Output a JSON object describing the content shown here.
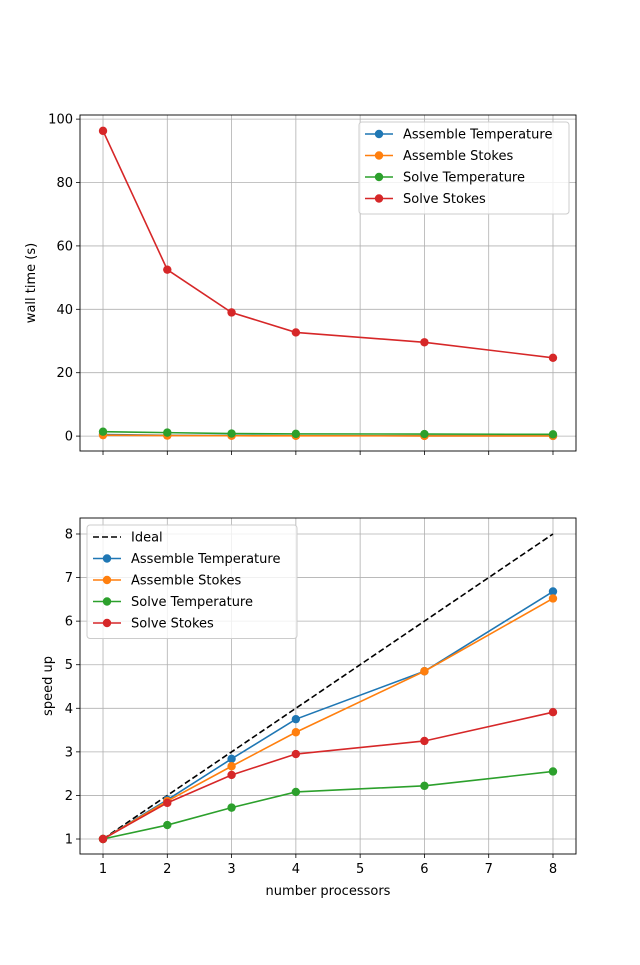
{
  "chart_data": [
    {
      "type": "line",
      "title": "",
      "xlabel": "",
      "ylabel": "wall time (s)",
      "x": [
        1,
        2,
        3,
        4,
        6,
        8
      ],
      "xlim": [
        0.642,
        8.358
      ],
      "ylim": [
        -4.7,
        101.3
      ],
      "xticks": [
        1,
        2,
        3,
        4,
        5,
        6,
        7,
        8
      ],
      "show_xtick_labels": false,
      "yticks": [
        0,
        20,
        40,
        60,
        80,
        100
      ],
      "grid": true,
      "legend": "top-right",
      "series": [
        {
          "name": "Assemble Temperature",
          "color": "#1f77b4",
          "values": [
            0.5,
            0.27,
            0.18,
            0.14,
            0.1,
            0.075
          ]
        },
        {
          "name": "Assemble Stokes",
          "color": "#ff7f0e",
          "values": [
            0.3,
            0.16,
            0.11,
            0.087,
            0.06,
            0.046
          ]
        },
        {
          "name": "Solve Temperature",
          "color": "#2ca02c",
          "values": [
            1.4,
            1.1,
            0.8,
            0.7,
            0.65,
            0.55
          ]
        },
        {
          "name": "Solve Stokes",
          "color": "#d62728",
          "values": [
            96.3,
            52.5,
            39.0,
            32.7,
            29.6,
            24.7
          ]
        }
      ]
    },
    {
      "type": "line",
      "title": "",
      "xlabel": "number processors",
      "ylabel": "speed up",
      "x": [
        1,
        2,
        3,
        4,
        6,
        8
      ],
      "xlim": [
        0.642,
        8.358
      ],
      "ylim": [
        0.656,
        8.367
      ],
      "xticks": [
        1,
        2,
        3,
        4,
        5,
        6,
        7,
        8
      ],
      "show_xtick_labels": true,
      "yticks": [
        1,
        2,
        3,
        4,
        5,
        6,
        7,
        8
      ],
      "grid": true,
      "legend": "top-left",
      "series": [
        {
          "name": "Ideal",
          "color": "#000000",
          "dashed": true,
          "markers": false,
          "x": [
            1,
            8
          ],
          "values": [
            1,
            8
          ]
        },
        {
          "name": "Assemble Temperature",
          "color": "#1f77b4",
          "values": [
            1,
            1.9,
            2.84,
            3.75,
            4.85,
            6.68
          ]
        },
        {
          "name": "Assemble Stokes",
          "color": "#ff7f0e",
          "values": [
            1,
            1.87,
            2.67,
            3.45,
            4.85,
            6.52
          ]
        },
        {
          "name": "Solve Temperature",
          "color": "#2ca02c",
          "values": [
            1,
            1.32,
            1.72,
            2.08,
            2.22,
            2.55
          ]
        },
        {
          "name": "Solve Stokes",
          "color": "#d62728",
          "values": [
            1,
            1.83,
            2.47,
            2.95,
            3.25,
            3.91
          ]
        }
      ]
    }
  ]
}
